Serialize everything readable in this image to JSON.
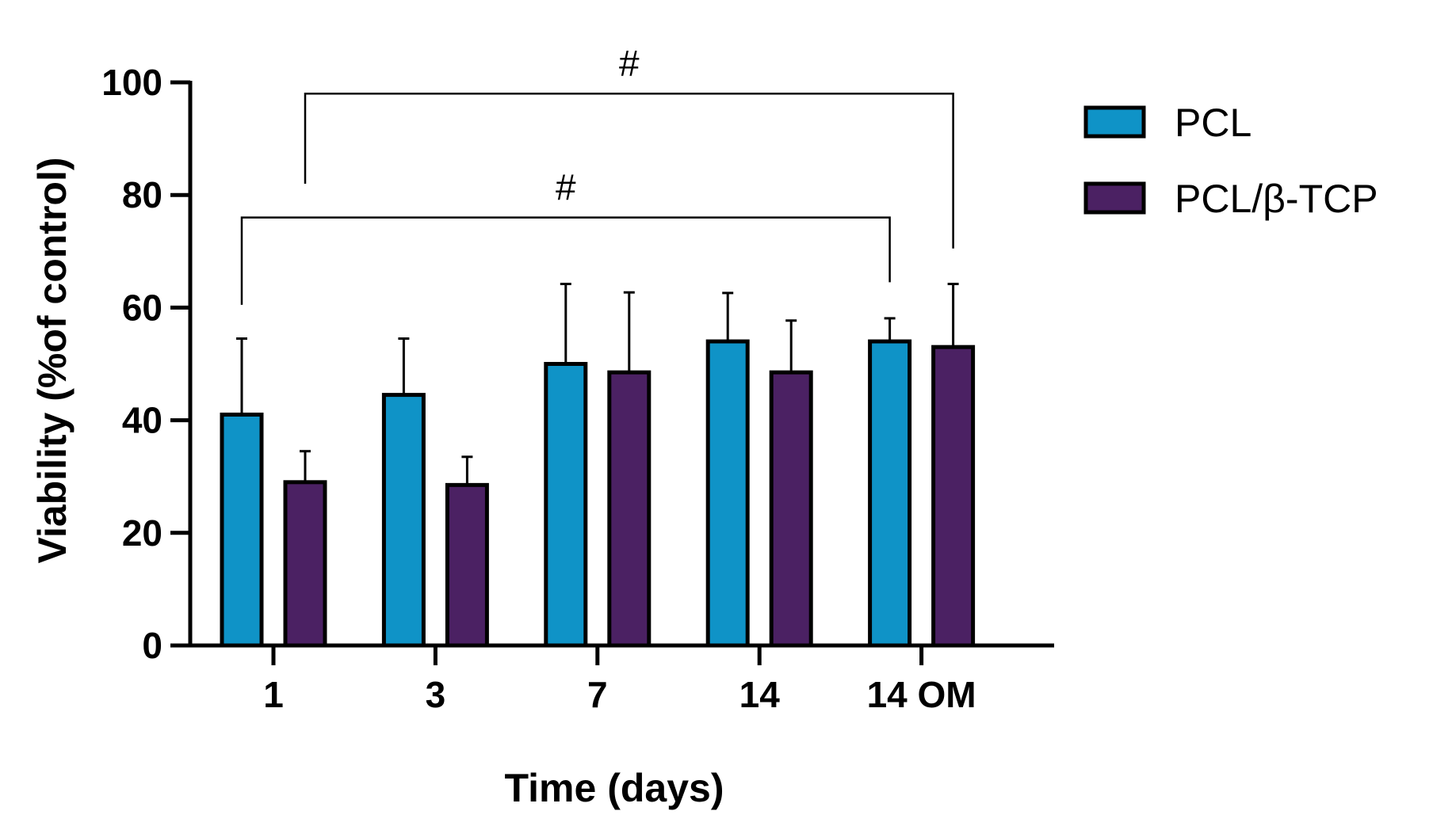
{
  "chart_data": {
    "type": "bar",
    "title": "",
    "xlabel": "Time (days)",
    "ylabel": "Viability (%of control)",
    "ylim": [
      0,
      100
    ],
    "yticks": [
      0,
      20,
      40,
      60,
      80,
      100
    ],
    "categories": [
      "1",
      "3",
      "7",
      "14",
      "14 OM"
    ],
    "series": [
      {
        "name": "PCL",
        "color": "#0f93c7",
        "values": [
          41,
          44.5,
          50,
          54,
          54
        ],
        "errors": [
          13.5,
          10,
          14.2,
          8.6,
          4.1
        ]
      },
      {
        "name": "PCL/β-TCP",
        "color": "#4b2163",
        "values": [
          29,
          28.5,
          48.5,
          48.5,
          53
        ],
        "errors": [
          5.5,
          5,
          14.2,
          9.2,
          11.2
        ]
      }
    ],
    "legend": {
      "position": "top-right"
    },
    "significance": [
      {
        "label": "#",
        "from": "1|PCL/β-TCP",
        "to": "14 OM|PCL/β-TCP",
        "level": 98
      },
      {
        "label": "#",
        "from": "1|PCL",
        "to": "14 OM|PCL",
        "level": 76
      }
    ]
  }
}
